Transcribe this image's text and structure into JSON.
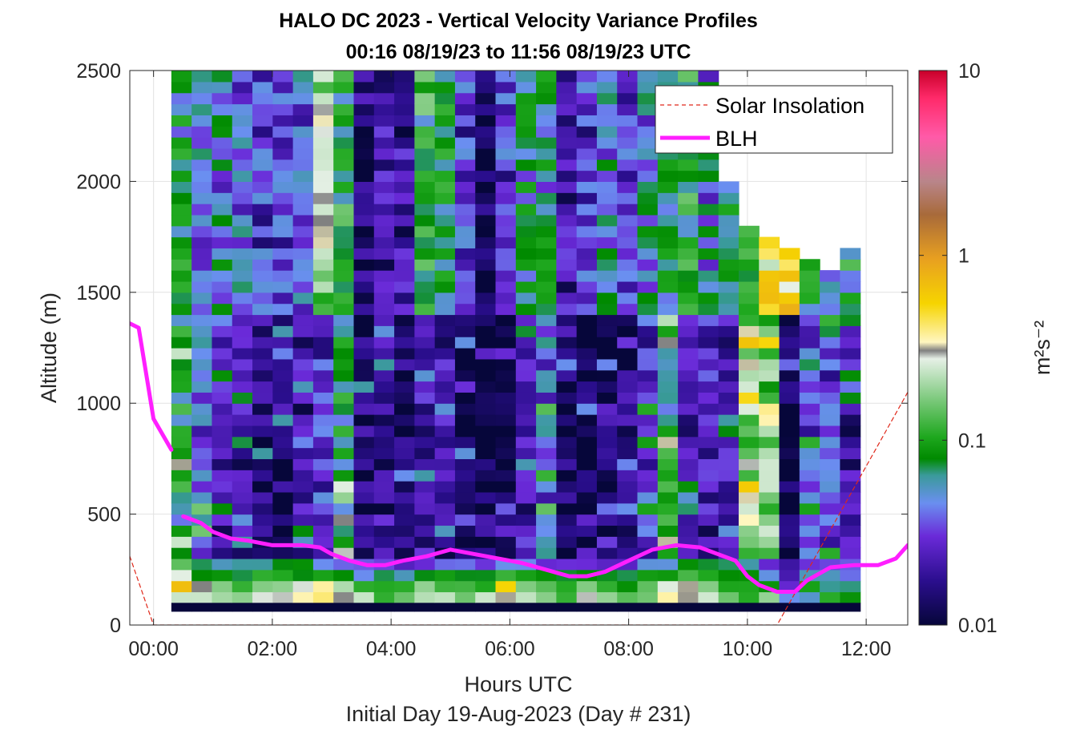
{
  "chart_data": {
    "type": "heatmap",
    "title": "HALO DC 2023 - Vertical Velocity Variance Profiles",
    "subtitle": "00:16 08/19/23 to 11:56 08/19/23  UTC",
    "xlabel": "Hours UTC",
    "xlabel2": "Initial Day 19-Aug-2023 (Day # 231)",
    "ylabel": "Altitude (m)",
    "xlim": [
      -0.4,
      12.7
    ],
    "ylim": [
      0,
      2500
    ],
    "xticks": [
      0,
      2,
      4,
      6,
      8,
      10,
      12
    ],
    "xtick_labels": [
      "00:00",
      "02:00",
      "04:00",
      "06:00",
      "08:00",
      "10:00",
      "12:00"
    ],
    "yticks": [
      0,
      500,
      1000,
      1500,
      2000,
      2500
    ],
    "ytick_labels": [
      "0",
      "500",
      "1000",
      "1500",
      "2000",
      "2500"
    ],
    "grid": true,
    "legend_position": "top-right",
    "colorbar": {
      "scale": "log",
      "range": [
        0.01,
        10
      ],
      "ticks": [
        0.01,
        0.1,
        1,
        10
      ],
      "tick_labels": [
        "0.01",
        "0.1",
        "1",
        "10"
      ],
      "label": "m²s⁻²"
    },
    "heatmap": {
      "x_start": 0.3,
      "x_end": 11.9,
      "n_columns": 34,
      "altitude_bin": 50,
      "columns": [
        {
          "alt_top": 2500,
          "surface": [
            0.25,
            0.6,
            0.3,
            0.15
          ],
          "mid": 0.08,
          "upper": 0.07
        },
        {
          "alt_top": 2500,
          "surface": [
            0.2,
            0.3,
            0.08,
            0.06
          ],
          "mid": 0.04,
          "upper": 0.04
        },
        {
          "alt_top": 2500,
          "surface": [
            0.2,
            0.15,
            0.08,
            0.05
          ],
          "mid": 0.02,
          "upper": 0.05
        },
        {
          "alt_top": 2500,
          "surface": [
            0.15,
            0.12,
            0.09,
            0.06
          ],
          "mid": 0.02,
          "upper": 0.04
        },
        {
          "alt_top": 2500,
          "surface": [
            0.25,
            0.15,
            0.1,
            0.06
          ],
          "mid": 0.015,
          "upper": 0.03
        },
        {
          "alt_top": 2500,
          "surface": [
            0.3,
            0.2,
            0.1,
            0.08
          ],
          "mid": 0.015,
          "upper": 0.03
        },
        {
          "alt_top": 2500,
          "surface": [
            0.3,
            0.25,
            0.08,
            0.07
          ],
          "mid": 0.02,
          "upper": 0.04
        },
        {
          "alt_top": 2500,
          "surface": [
            0.4,
            0.3,
            0.1,
            0.06
          ],
          "mid": 0.03,
          "upper": 0.2
        },
        {
          "alt_top": 2500,
          "surface": [
            0.3,
            0.2,
            0.08,
            0.05
          ],
          "mid": 0.08,
          "upper": 0.09
        },
        {
          "alt_top": 2500,
          "surface": [
            0.2,
            0.12,
            0.06,
            0.03
          ],
          "mid": 0.015,
          "upper": 0.015
        },
        {
          "alt_top": 2500,
          "surface": [
            0.15,
            0.1,
            0.08,
            0.03
          ],
          "mid": 0.015,
          "upper": 0.02
        },
        {
          "alt_top": 2500,
          "surface": [
            0.15,
            0.12,
            0.07,
            0.03
          ],
          "mid": 0.012,
          "upper": 0.02
        },
        {
          "alt_top": 2500,
          "surface": [
            0.2,
            0.15,
            0.08,
            0.03
          ],
          "mid": 0.02,
          "upper": 0.1
        },
        {
          "alt_top": 2500,
          "surface": [
            0.2,
            0.12,
            0.08,
            0.04
          ],
          "mid": 0.02,
          "upper": 0.07
        },
        {
          "alt_top": 2500,
          "surface": [
            0.2,
            0.15,
            0.1,
            0.04
          ],
          "mid": 0.012,
          "upper": 0.03
        },
        {
          "alt_top": 2500,
          "surface": [
            0.2,
            0.12,
            0.08,
            0.04
          ],
          "mid": 0.011,
          "upper": 0.012
        },
        {
          "alt_top": 2500,
          "surface": [
            0.3,
            0.6,
            0.1,
            0.04
          ],
          "mid": 0.011,
          "upper": 0.03
        },
        {
          "alt_top": 2500,
          "surface": [
            0.2,
            0.15,
            0.08,
            0.04
          ],
          "mid": 0.02,
          "upper": 0.06
        },
        {
          "alt_top": 2500,
          "surface": [
            0.2,
            0.12,
            0.08,
            0.03
          ],
          "mid": 0.04,
          "upper": 0.06
        },
        {
          "alt_top": 2500,
          "surface": [
            0.15,
            0.1,
            0.06,
            0.03
          ],
          "mid": 0.012,
          "upper": 0.02
        },
        {
          "alt_top": 2500,
          "surface": [
            0.3,
            0.15,
            0.08,
            0.03
          ],
          "mid": 0.011,
          "upper": 0.03
        },
        {
          "alt_top": 2500,
          "surface": [
            0.2,
            0.12,
            0.07,
            0.03
          ],
          "mid": 0.012,
          "upper": 0.05
        },
        {
          "alt_top": 2500,
          "surface": [
            0.12,
            0.1,
            0.06,
            0.03
          ],
          "mid": 0.015,
          "upper": 0.03
        },
        {
          "alt_top": 2500,
          "surface": [
            0.15,
            0.12,
            0.1,
            0.05
          ],
          "mid": 0.03,
          "upper": 0.05
        },
        {
          "alt_top": 2500,
          "surface": [
            0.3,
            0.25,
            0.1,
            0.06
          ],
          "mid": 0.08,
          "upper": 0.06
        },
        {
          "alt_top": 2500,
          "surface": [
            0.3,
            0.3,
            0.15,
            0.08
          ],
          "mid": 0.02,
          "upper": 0.1
        },
        {
          "alt_top": 2500,
          "surface": [
            0.2,
            0.15,
            0.12,
            0.08
          ],
          "mid": 0.02,
          "upper": 0.05
        },
        {
          "alt_top": 2000,
          "surface": [
            0.15,
            0.12,
            0.1,
            0.06
          ],
          "mid": 0.02,
          "upper": 0.06
        },
        {
          "alt_top": 1800,
          "surface": [
            0.1,
            0.1,
            0.08,
            0.05
          ],
          "mid": 0.2,
          "upper": 0.08
        },
        {
          "alt_top": 1750,
          "surface": [
            0.15,
            0.1,
            0.06,
            0.03
          ],
          "mid": 0.15,
          "upper": 0.4
        },
        {
          "alt_top": 1700,
          "surface": [
            0.04,
            0.03,
            0.025,
            0.02
          ],
          "mid": 0.011,
          "upper": 0.5
        },
        {
          "alt_top": 1650,
          "surface": [
            0.05,
            0.08,
            0.06,
            0.04
          ],
          "mid": 0.03,
          "upper": 0.1
        },
        {
          "alt_top": 1600,
          "surface": [
            0.1,
            0.06,
            0.05,
            0.03
          ],
          "mid": 0.03,
          "upper": 0.05
        },
        {
          "alt_top": 1700,
          "surface": [
            0.08,
            0.06,
            0.05,
            0.03
          ],
          "mid": 0.02,
          "upper": 0.08
        }
      ]
    },
    "series": [
      {
        "name": "Solar Insolation",
        "style": "dashed",
        "color": "#e0281a",
        "x": [
          -0.4,
          0.0,
          10.5,
          12.7
        ],
        "y": [
          310,
          0,
          0,
          1050
        ]
      },
      {
        "name": "BLH",
        "style": "solid",
        "color": "#ff1fff",
        "segments": [
          {
            "x": [
              -0.4,
              -0.25,
              0.0,
              0.3
            ],
            "y": [
              1360,
              1340,
              930,
              790
            ]
          },
          {
            "x": [
              0.5,
              0.8,
              1.0,
              1.3,
              1.6,
              2.0,
              2.5,
              2.8,
              3.0,
              3.3,
              3.6,
              3.9,
              4.2,
              4.6,
              5.0,
              5.4,
              5.8,
              6.2,
              6.6,
              7.0,
              7.3,
              7.6,
              8.0,
              8.4,
              8.8,
              9.2,
              9.6,
              9.8,
              10.0,
              10.2,
              10.5,
              10.8,
              11.0,
              11.4,
              11.8,
              12.2,
              12.5,
              12.7
            ],
            "y": [
              490,
              460,
              420,
              390,
              380,
              360,
              360,
              350,
              320,
              290,
              270,
              270,
              290,
              310,
              340,
              320,
              300,
              280,
              250,
              220,
              220,
              240,
              290,
              340,
              360,
              350,
              310,
              290,
              220,
              180,
              150,
              150,
              200,
              260,
              270,
              270,
              300,
              360
            ]
          }
        ]
      }
    ],
    "legend": [
      "Solar Insolation",
      "BLH"
    ]
  }
}
